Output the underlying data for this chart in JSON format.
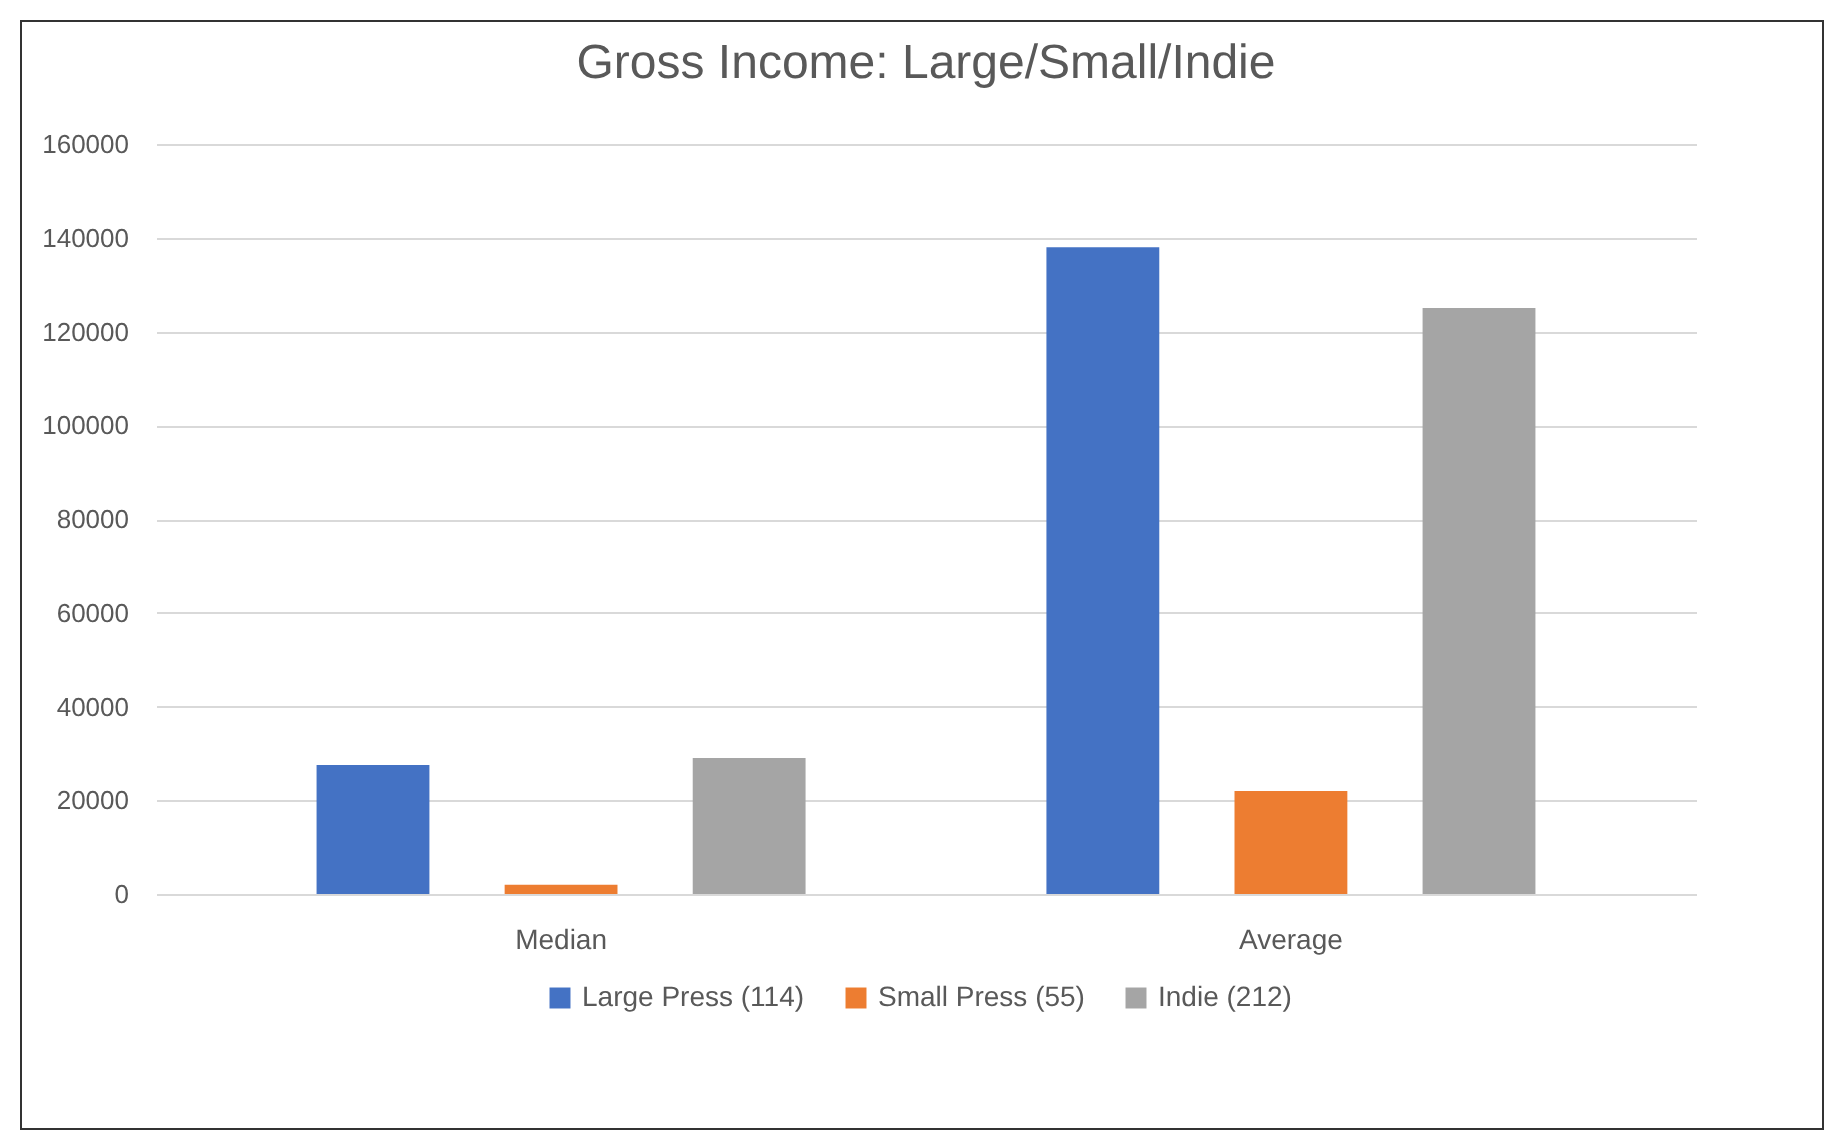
{
  "chart_data": {
    "type": "bar",
    "title": "Gross Income: Large/Small/Indie",
    "categories": [
      "Median",
      "Average"
    ],
    "series": [
      {
        "name": "Large Press (114)",
        "color": "#4472c4",
        "values": [
          27500,
          138000
        ]
      },
      {
        "name": "Small Press (55)",
        "color": "#ed7d31",
        "values": [
          2000,
          22000
        ]
      },
      {
        "name": "Indie (212)",
        "color": "#a5a5a5",
        "values": [
          29000,
          125000
        ]
      }
    ],
    "ylim": [
      0,
      160000
    ],
    "yticks": [
      0,
      20000,
      40000,
      60000,
      80000,
      100000,
      120000,
      140000,
      160000
    ],
    "grid": "y",
    "legend": "bottom"
  }
}
